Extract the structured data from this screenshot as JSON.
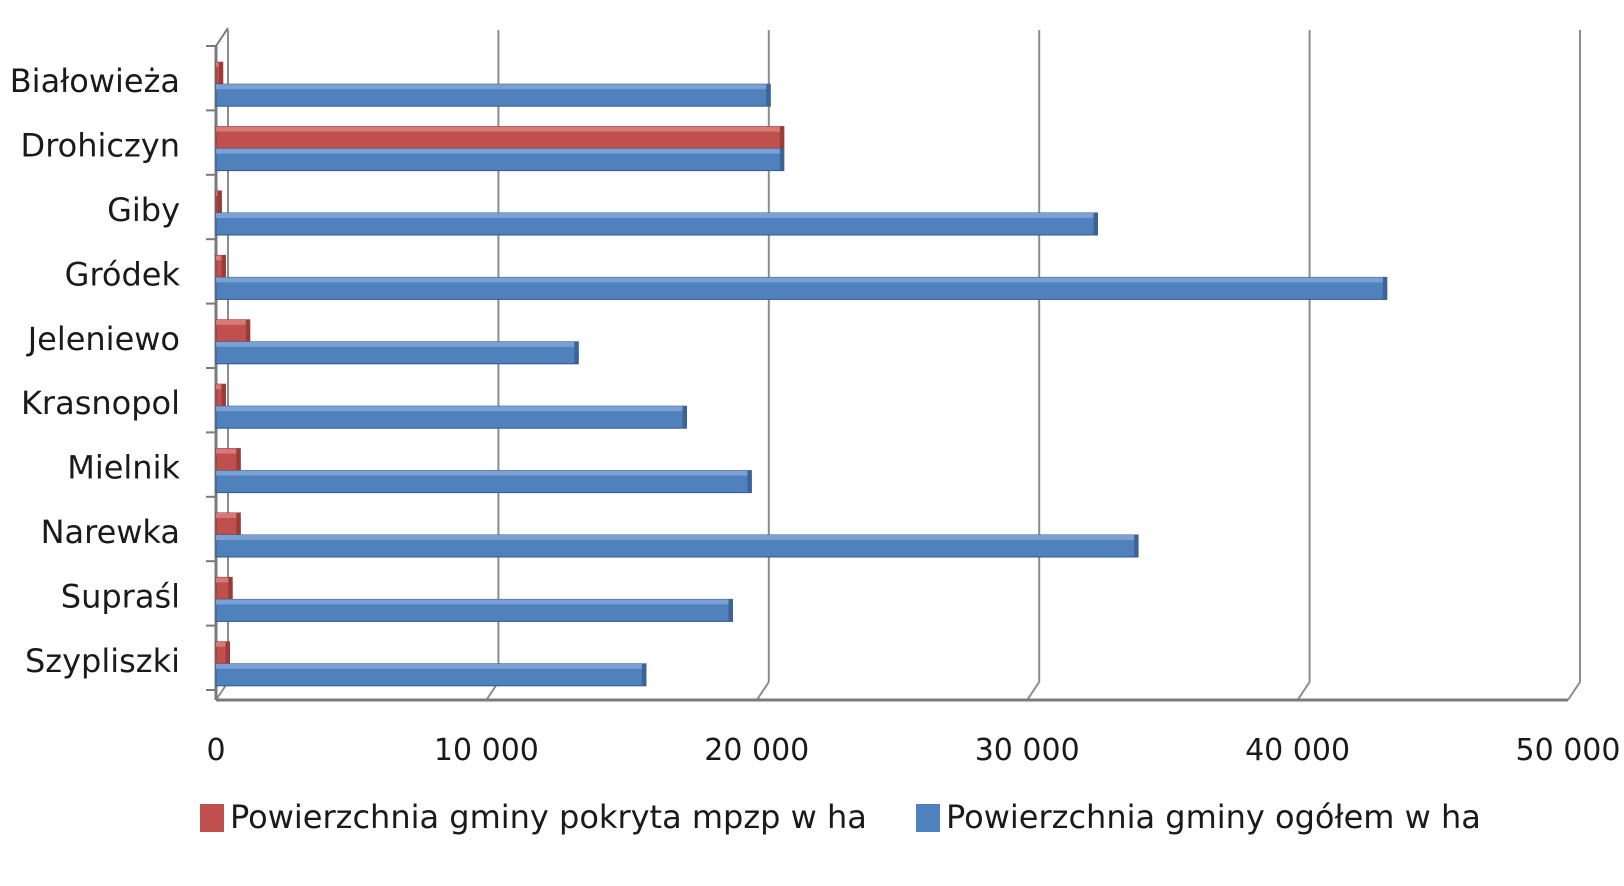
{
  "chart_data": {
    "type": "bar",
    "orientation": "horizontal",
    "categories": [
      "Białowieża",
      "Drohiczyn",
      "Giby",
      "Gródek",
      "Jeleniewo",
      "Krasnopol",
      "Mielnik",
      "Narewka",
      "Supraśl",
      "Szypliszki"
    ],
    "series": [
      {
        "name": "Powierzchnia gminy pokryta mpzp w ha",
        "color": "#c0504d",
        "values": [
          250,
          21000,
          200,
          350,
          1250,
          350,
          900,
          900,
          600,
          500
        ]
      },
      {
        "name": "Powierzchnia gminy ogółem w ha",
        "color": "#4f81bd",
        "values": [
          20500,
          21000,
          32600,
          43300,
          13400,
          17400,
          19800,
          34100,
          19100,
          15900
        ]
      }
    ],
    "xlim": [
      0,
      50000
    ],
    "ticks": [
      "0",
      "10 000",
      "20 000",
      "30 000",
      "40 000",
      "50 000"
    ],
    "tick_values": [
      0,
      10000,
      20000,
      30000,
      40000,
      50000
    ],
    "grid": true,
    "legend_position": "bottom"
  }
}
